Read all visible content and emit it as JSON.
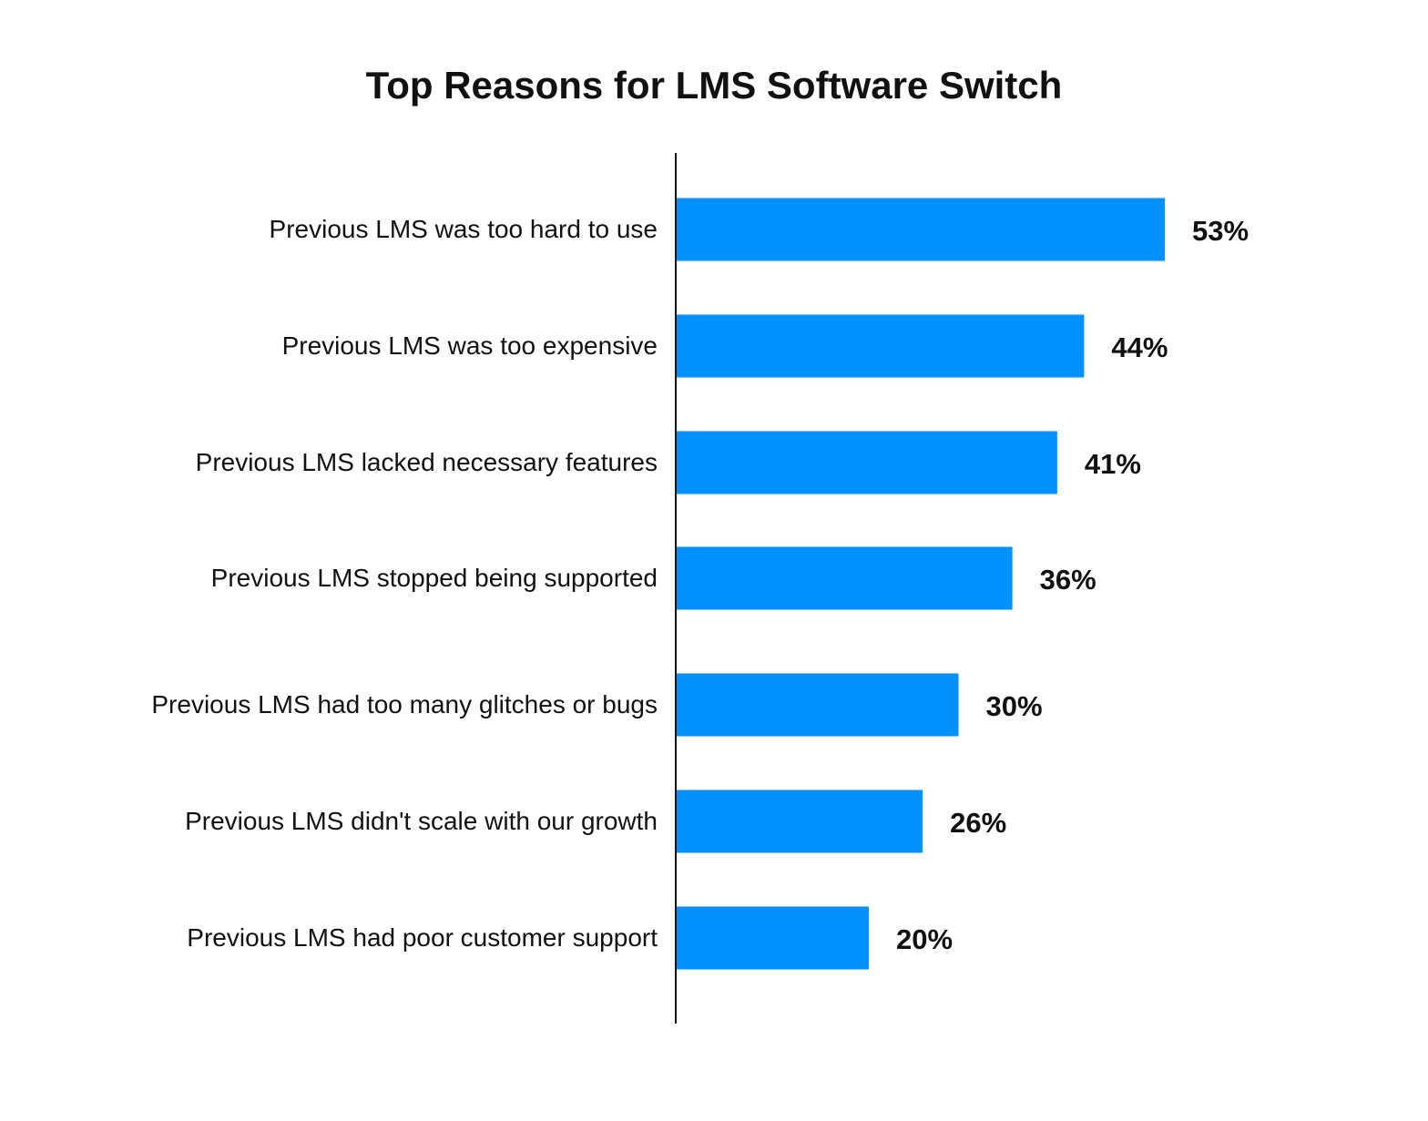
{
  "chart_data": {
    "type": "bar",
    "orientation": "horizontal",
    "title": "Top Reasons for LMS Software Switch",
    "xlabel": "",
    "ylabel": "",
    "categories": [
      "Previous LMS was too hard to use",
      "Previous LMS was too expensive",
      "Previous LMS lacked necessary features",
      "Previous LMS stopped being supported",
      "Previous LMS had too many glitches or bugs",
      "Previous LMS didn't scale with our growth",
      "Previous LMS had poor customer support"
    ],
    "values": [
      53,
      44,
      41,
      36,
      30,
      26,
      20
    ],
    "data_labels": [
      "53%",
      "44%",
      "41%",
      "36%",
      "30%",
      "26%",
      "20%"
    ],
    "unit": "%",
    "grid": false,
    "legend": "none",
    "colors": {
      "bar": "#0091FF",
      "axis": "#111111",
      "text": "#111111"
    }
  }
}
